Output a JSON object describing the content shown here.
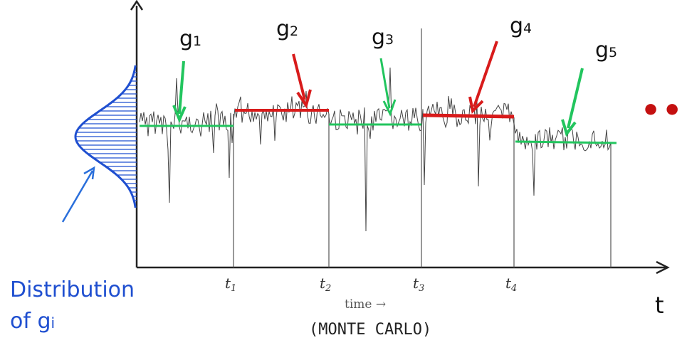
{
  "labels": {
    "g1": {
      "base": "g",
      "sub": "1"
    },
    "g2": {
      "base": "g",
      "sub": "2"
    },
    "g3": {
      "base": "g",
      "sub": "3"
    },
    "g4": {
      "base": "g",
      "sub": "4"
    },
    "g5": {
      "base": "g",
      "sub": "5"
    }
  },
  "ellipsis": "•••",
  "distribution": {
    "line1": "Distribution",
    "line2_prefix": "of g",
    "line2_sub": "i"
  },
  "axis": {
    "t": "t",
    "time": "time →",
    "monte_carlo": "(MONTE CARLO)",
    "ticks": [
      "t1",
      "t2",
      "t3",
      "t4"
    ]
  },
  "colors": {
    "green": "#22c55e",
    "red": "#d81b1b",
    "blue": "#1f4fd0",
    "trace": "#444444"
  }
}
